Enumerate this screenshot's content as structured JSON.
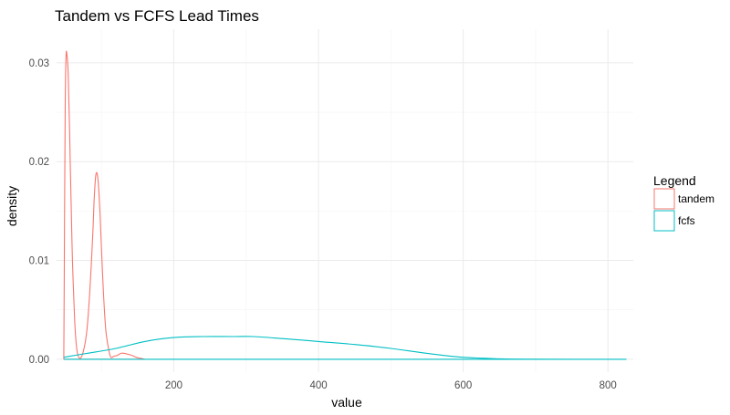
{
  "chart_data": {
    "type": "line",
    "title": "Tandem vs FCFS Lead Times",
    "xlabel": "value",
    "ylabel": "density",
    "xlim": [
      38,
      835
    ],
    "ylim": [
      -0.0013,
      0.0334
    ],
    "x_ticks": [
      200,
      400,
      600,
      800
    ],
    "x_tick_labels": [
      "200",
      "400",
      "600",
      "800"
    ],
    "y_ticks": [
      0.0,
      0.01,
      0.02,
      0.03
    ],
    "y_tick_labels": [
      "0.00",
      "0.01",
      "0.02",
      "0.03"
    ],
    "grid": true,
    "legend_placement": "right",
    "legend_title": "Legend",
    "series": [
      {
        "name": "tandem",
        "color": "#F8766D",
        "x": [
          48,
          49,
          50,
          51,
          52,
          54,
          56,
          58,
          60,
          63,
          66,
          70,
          75,
          80,
          84,
          88,
          90,
          92,
          94,
          96,
          98,
          100,
          103,
          106,
          110,
          113,
          117,
          122,
          127,
          132,
          137,
          142,
          148,
          154,
          160
        ],
        "y": [
          0.0,
          0.014,
          0.026,
          0.0305,
          0.031,
          0.029,
          0.023,
          0.016,
          0.01,
          0.004,
          0.001,
          0.0001,
          0.0008,
          0.003,
          0.007,
          0.0125,
          0.0162,
          0.0185,
          0.0188,
          0.0175,
          0.0148,
          0.0112,
          0.0065,
          0.003,
          0.001,
          0.0002,
          0.0003,
          0.0004,
          0.0006,
          0.0006,
          0.0005,
          0.0004,
          0.0002,
          0.0001,
          0.0
        ]
      },
      {
        "name": "fcfs",
        "color": "#00BFC4",
        "x": [
          48,
          80,
          120,
          160,
          200,
          240,
          280,
          310,
          350,
          400,
          450,
          500,
          550,
          600,
          650,
          700,
          750,
          800,
          825
        ],
        "y": [
          0.0002,
          0.0006,
          0.0011,
          0.0018,
          0.0022,
          0.0023,
          0.0023,
          0.0023,
          0.0021,
          0.0018,
          0.0015,
          0.0011,
          0.0006,
          0.0002,
          5e-05,
          1e-05,
          0.0,
          0.0,
          0.0
        ]
      }
    ]
  }
}
